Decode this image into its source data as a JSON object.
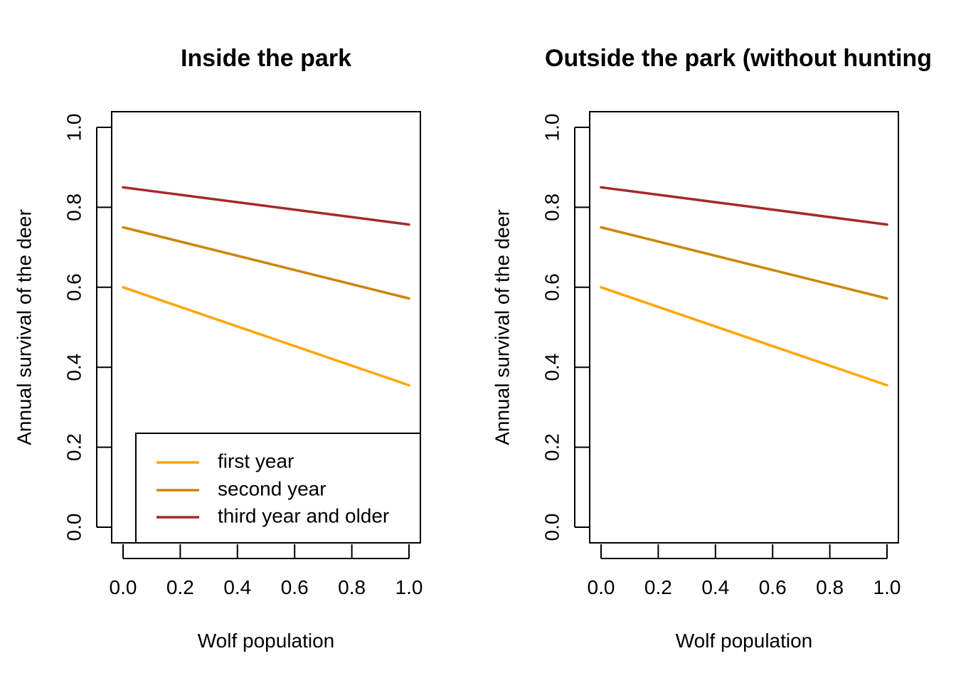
{
  "chart_data": [
    {
      "type": "line",
      "title": "Inside the park",
      "xlabel": "Wolf population",
      "ylabel": "Annual survival of the deer",
      "xlim": [
        0,
        1
      ],
      "ylim": [
        0,
        1
      ],
      "xticks": [
        "0.0",
        "0.2",
        "0.4",
        "0.6",
        "0.8",
        "1.0"
      ],
      "yticks": [
        "0.0",
        "0.2",
        "0.4",
        "0.6",
        "0.8",
        "1.0"
      ],
      "grid": false,
      "legend": "bottom-right",
      "series": [
        {
          "name": "first year",
          "color": "#FFA500",
          "x": [
            0,
            1
          ],
          "values": [
            0.6,
            0.355
          ]
        },
        {
          "name": "second year",
          "color": "#CD8500",
          "x": [
            0,
            1
          ],
          "values": [
            0.75,
            0.572
          ]
        },
        {
          "name": "third year and older",
          "color": "#A52A2A",
          "x": [
            0,
            1
          ],
          "values": [
            0.85,
            0.757
          ]
        }
      ]
    },
    {
      "type": "line",
      "title": "Outside the park (without hunting",
      "xlabel": "Wolf population",
      "ylabel": "Annual survival of the deer",
      "xlim": [
        0,
        1
      ],
      "ylim": [
        0,
        1
      ],
      "xticks": [
        "0.0",
        "0.2",
        "0.4",
        "0.6",
        "0.8",
        "1.0"
      ],
      "yticks": [
        "0.0",
        "0.2",
        "0.4",
        "0.6",
        "0.8",
        "1.0"
      ],
      "grid": false,
      "legend": "none",
      "series": [
        {
          "color": "#FFA500",
          "x": [
            0,
            1
          ],
          "values": [
            0.6,
            0.355
          ]
        },
        {
          "color": "#CD8500",
          "x": [
            0,
            1
          ],
          "values": [
            0.75,
            0.572
          ]
        },
        {
          "color": "#A52A2A",
          "x": [
            0,
            1
          ],
          "values": [
            0.85,
            0.757
          ]
        }
      ]
    }
  ]
}
